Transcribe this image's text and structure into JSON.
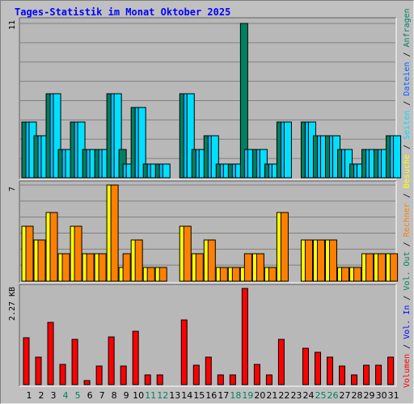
{
  "title": "Tages-Statistik im Monat Oktober 2025",
  "colors": {
    "background": "#c0c0c0",
    "plot_background": "#b8b8b8",
    "grid": "#808080",
    "anfragen": "#00805f",
    "dateien": "#00c0ff",
    "seiten": "#00e0ff",
    "besuche": "#ffff00",
    "rechner": "#ff8000",
    "volumen": "#ff0000",
    "title": "#0000ff",
    "weekend_label": "#00805f",
    "weekday_label": "#000000"
  },
  "chart_data": [
    {
      "type": "bar",
      "panel": "top",
      "ymax_label": "11",
      "ylim": [
        0,
        11
      ],
      "grid": true,
      "categories": [
        "1",
        "2",
        "3",
        "4",
        "5",
        "6",
        "7",
        "8",
        "9",
        "10",
        "11",
        "12",
        "13",
        "14",
        "15",
        "16",
        "17",
        "18",
        "19",
        "20",
        "21",
        "22",
        "23",
        "24",
        "25",
        "26",
        "27",
        "28",
        "29",
        "30",
        "31"
      ],
      "series": [
        {
          "name": "Anfragen",
          "values": [
            4,
            3,
            6,
            2,
            4,
            2,
            2,
            6,
            2,
            5,
            1,
            1,
            0,
            6,
            2,
            3,
            1,
            1,
            11,
            2,
            1,
            4,
            0,
            4,
            3,
            3,
            2,
            1,
            2,
            2,
            3
          ]
        },
        {
          "name": "Dateien",
          "values": [
            4,
            3,
            6,
            2,
            4,
            2,
            2,
            6,
            1,
            5,
            1,
            1,
            0,
            6,
            2,
            3,
            1,
            1,
            2,
            2,
            1,
            4,
            0,
            4,
            3,
            3,
            2,
            1,
            2,
            2,
            3
          ]
        },
        {
          "name": "Seiten",
          "values": [
            4,
            3,
            6,
            2,
            4,
            2,
            2,
            6,
            1,
            5,
            1,
            1,
            0,
            6,
            2,
            3,
            1,
            1,
            2,
            2,
            1,
            4,
            0,
            4,
            3,
            3,
            2,
            1,
            2,
            2,
            3
          ]
        }
      ]
    },
    {
      "type": "bar",
      "panel": "middle",
      "ymax_label": "7",
      "ylim": [
        0,
        7
      ],
      "grid": true,
      "categories": [
        "1",
        "2",
        "3",
        "4",
        "5",
        "6",
        "7",
        "8",
        "9",
        "10",
        "11",
        "12",
        "13",
        "14",
        "15",
        "16",
        "17",
        "18",
        "19",
        "20",
        "21",
        "22",
        "23",
        "24",
        "25",
        "26",
        "27",
        "28",
        "29",
        "30",
        "31"
      ],
      "series": [
        {
          "name": "Besuche",
          "values": [
            4,
            3,
            5,
            2,
            4,
            2,
            2,
            7,
            1,
            3,
            1,
            1,
            0,
            4,
            2,
            3,
            1,
            1,
            1,
            2,
            1,
            5,
            0,
            3,
            3,
            3,
            1,
            1,
            2,
            2,
            2
          ]
        },
        {
          "name": "Rechner",
          "values": [
            4,
            3,
            5,
            2,
            4,
            2,
            2,
            7,
            2,
            3,
            1,
            1,
            0,
            4,
            2,
            3,
            1,
            1,
            2,
            2,
            1,
            5,
            0,
            3,
            3,
            3,
            1,
            1,
            2,
            2,
            2
          ]
        }
      ]
    },
    {
      "type": "bar",
      "panel": "bottom",
      "ymax_label": "2.27 KB",
      "ylim": [
        0,
        2.27
      ],
      "grid": false,
      "categories": [
        "1",
        "2",
        "3",
        "4",
        "5",
        "6",
        "7",
        "8",
        "9",
        "10",
        "11",
        "12",
        "13",
        "14",
        "15",
        "16",
        "17",
        "18",
        "19",
        "20",
        "21",
        "22",
        "23",
        "24",
        "25",
        "26",
        "27",
        "28",
        "29",
        "30",
        "31"
      ],
      "series": [
        {
          "name": "Volumen",
          "values": [
            1.1,
            0.65,
            1.46,
            0.48,
            1.06,
            0.09,
            0.44,
            1.13,
            0.43,
            1.26,
            0.22,
            0.22,
            0,
            1.53,
            0.45,
            0.65,
            0.22,
            0.22,
            2.27,
            0.47,
            0.22,
            1.06,
            0,
            0.86,
            0.76,
            0.65,
            0.43,
            0.23,
            0.45,
            0.45,
            0.65
          ]
        }
      ]
    }
  ],
  "xlabels": {
    "days": [
      "1",
      "2",
      "3",
      "4",
      "5",
      "6",
      "7",
      "8",
      "9",
      "10",
      "11",
      "12",
      "13",
      "14",
      "15",
      "16",
      "17",
      "18",
      "19",
      "20",
      "21",
      "22",
      "23",
      "24",
      "25",
      "26",
      "27",
      "28",
      "29",
      "30",
      "31"
    ],
    "weekend": [
      4,
      5,
      11,
      12,
      18,
      19,
      25,
      26
    ]
  },
  "side_legend": [
    {
      "text": "Volumen",
      "color": "#ff0000"
    },
    {
      "text": " / ",
      "color": "#000000"
    },
    {
      "text": "Vol. In",
      "color": "#0000ff"
    },
    {
      "text": " / ",
      "color": "#000000"
    },
    {
      "text": "Vol. Out",
      "color": "#00805f"
    },
    {
      "text": " / ",
      "color": "#000000"
    },
    {
      "text": "Rechner",
      "color": "#ff8000"
    },
    {
      "text": " / ",
      "color": "#000000"
    },
    {
      "text": "Besuche",
      "color": "#ffff00"
    },
    {
      "text": " / ",
      "color": "#000000"
    },
    {
      "text": "Seiten",
      "color": "#00e0ff"
    },
    {
      "text": " / ",
      "color": "#000000"
    },
    {
      "text": "Dateien",
      "color": "#0060ff"
    },
    {
      "text": " / ",
      "color": "#000000"
    },
    {
      "text": "Anfragen",
      "color": "#00805f"
    }
  ]
}
